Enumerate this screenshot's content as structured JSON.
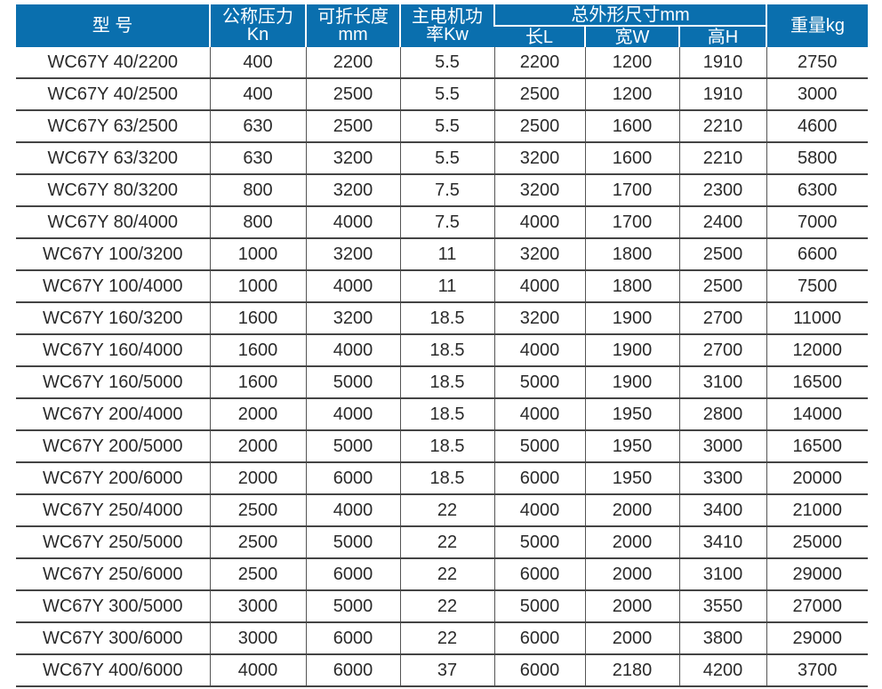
{
  "header": {
    "model": "型 号",
    "pressure": "公称压力\nKn",
    "length": "可折长度\nmm",
    "power": "主电机功\n率Kw",
    "dims": "总外形尺寸mm",
    "dim_l": "长L",
    "dim_w": "宽W",
    "dim_h": "高H",
    "weight": "重量kg"
  },
  "header_color": "#0a6fae",
  "rows": [
    [
      "WC67Y 40/2200",
      "400",
      "2200",
      "5.5",
      "2200",
      "1200",
      "1910",
      "2750"
    ],
    [
      "WC67Y 40/2500",
      "400",
      "2500",
      "5.5",
      "2500",
      "1200",
      "1910",
      "3000"
    ],
    [
      "WC67Y 63/2500",
      "630",
      "2500",
      "5.5",
      "2500",
      "1600",
      "2210",
      "4600"
    ],
    [
      "WC67Y 63/3200",
      "630",
      "3200",
      "5.5",
      "3200",
      "1600",
      "2210",
      "5800"
    ],
    [
      "WC67Y 80/3200",
      "800",
      "3200",
      "7.5",
      "3200",
      "1700",
      "2300",
      "6300"
    ],
    [
      "WC67Y 80/4000",
      "800",
      "4000",
      "7.5",
      "4000",
      "1700",
      "2400",
      "7000"
    ],
    [
      "WC67Y 100/3200",
      "1000",
      "3200",
      "11",
      "3200",
      "1800",
      "2500",
      "6600"
    ],
    [
      "WC67Y 100/4000",
      "1000",
      "4000",
      "11",
      "4000",
      "1800",
      "2500",
      "7500"
    ],
    [
      "WC67Y 160/3200",
      "1600",
      "3200",
      "18.5",
      "3200",
      "1900",
      "2700",
      "11000"
    ],
    [
      "WC67Y 160/4000",
      "1600",
      "4000",
      "18.5",
      "4000",
      "1900",
      "2700",
      "12000"
    ],
    [
      "WC67Y 160/5000",
      "1600",
      "5000",
      "18.5",
      "5000",
      "1900",
      "3100",
      "16500"
    ],
    [
      "WC67Y 200/4000",
      "2000",
      "4000",
      "18.5",
      "4000",
      "1950",
      "2800",
      "14000"
    ],
    [
      "WC67Y 200/5000",
      "2000",
      "5000",
      "18.5",
      "5000",
      "1950",
      "3000",
      "16500"
    ],
    [
      "WC67Y 200/6000",
      "2000",
      "6000",
      "18.5",
      "6000",
      "1950",
      "3300",
      "20000"
    ],
    [
      "WC67Y 250/4000",
      "2500",
      "4000",
      "22",
      "4000",
      "2000",
      "3400",
      "21000"
    ],
    [
      "WC67Y 250/5000",
      "2500",
      "5000",
      "22",
      "5000",
      "2000",
      "3410",
      "25000"
    ],
    [
      "WC67Y 250/6000",
      "2500",
      "6000",
      "22",
      "6000",
      "2000",
      "3100",
      "29000"
    ],
    [
      "WC67Y 300/5000",
      "3000",
      "5000",
      "22",
      "5000",
      "2000",
      "3550",
      "27000"
    ],
    [
      "WC67Y 300/6000",
      "3000",
      "6000",
      "22",
      "6000",
      "2000",
      "3800",
      "29000"
    ],
    [
      "WC67Y 400/6000",
      "4000",
      "6000",
      "37",
      "6000",
      "2180",
      "4200",
      "3700"
    ]
  ]
}
